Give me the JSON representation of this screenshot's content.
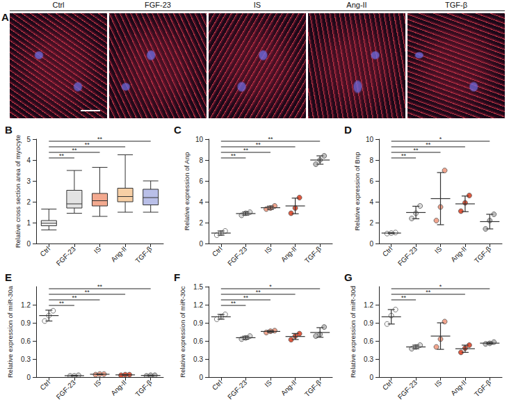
{
  "image_panel": {
    "label": "A",
    "titles": [
      "Ctrl",
      "FGF-23",
      "IS",
      "Ang-II",
      "TGF-β"
    ]
  },
  "chart_data": [
    {
      "type": "boxplot",
      "title": "B",
      "ylabel": "Relative cross section area of myocyte",
      "categories": [
        "Ctrl",
        "FGF-23",
        "IS",
        "Ang-II",
        "TGF-β"
      ],
      "values": [
        [
          0.65,
          0.85,
          0.97,
          1.1,
          1.65
        ],
        [
          1.45,
          1.7,
          1.9,
          2.55,
          3.5
        ],
        [
          1.3,
          1.8,
          2.05,
          2.4,
          3.65
        ],
        [
          1.5,
          2.0,
          2.25,
          2.65,
          4.25
        ],
        [
          1.5,
          1.85,
          2.2,
          2.6,
          3.0
        ]
      ],
      "colors": [
        "#efefef",
        "#e3e3e3",
        "#f3a98f",
        "#f7cfa5",
        "#b9bfe8"
      ],
      "ylim": [
        0,
        5
      ],
      "yticks": [
        0,
        1,
        2,
        3,
        4,
        5
      ],
      "grid": false,
      "annotations": [
        {
          "from": "Ctrl",
          "to": "FGF-23",
          "text": "**"
        },
        {
          "from": "Ctrl",
          "to": "IS",
          "text": "**"
        },
        {
          "from": "Ctrl",
          "to": "Ang-II",
          "text": "**"
        },
        {
          "from": "Ctrl",
          "to": "TGF-β",
          "text": "**"
        }
      ]
    },
    {
      "type": "dotplot",
      "title": "C",
      "ylabel": "Relative expression of Anp",
      "categories": [
        "Ctrl",
        "FGF-23",
        "IS",
        "Ang-II",
        "TGF-β"
      ],
      "values": [
        [
          0.8,
          1.0,
          1.2
        ],
        [
          2.7,
          2.9,
          3.0
        ],
        [
          3.3,
          3.4,
          3.6
        ],
        [
          2.9,
          3.4,
          4.4
        ],
        [
          7.6,
          8.0,
          8.4
        ]
      ],
      "means": [
        1.0,
        2.87,
        3.43,
        3.6,
        8.0
      ],
      "sd": [
        0.2,
        0.15,
        0.15,
        0.75,
        0.4
      ],
      "colors": [
        "#ffffff",
        "#d9d9d9",
        "#f2a58e",
        "#e0583e",
        "#bdbdbd"
      ],
      "ylim": [
        0,
        10
      ],
      "yticks": [
        0,
        2,
        4,
        6,
        8,
        10
      ],
      "grid": false,
      "annotations": [
        {
          "from": "Ctrl",
          "to": "FGF-23",
          "text": "**"
        },
        {
          "from": "Ctrl",
          "to": "IS",
          "text": "**"
        },
        {
          "from": "Ctrl",
          "to": "Ang-II",
          "text": "**"
        },
        {
          "from": "Ctrl",
          "to": "TGF-β",
          "text": "**"
        }
      ]
    },
    {
      "type": "dotplot",
      "title": "D",
      "ylabel": "Relative expression of Bnp",
      "categories": [
        "Ctrl",
        "FGF-23",
        "IS",
        "Ang-II",
        "TGF-β"
      ],
      "values": [
        [
          0.95,
          1.0,
          1.05
        ],
        [
          2.4,
          2.9,
          3.6
        ],
        [
          2.2,
          3.5,
          7.0
        ],
        [
          3.1,
          3.9,
          4.6
        ],
        [
          1.4,
          2.2,
          2.8
        ]
      ],
      "means": [
        1.0,
        2.97,
        4.3,
        3.8,
        2.1
      ],
      "sd": [
        0.05,
        0.6,
        2.5,
        0.75,
        0.7
      ],
      "colors": [
        "#ffffff",
        "#d9d9d9",
        "#f2a58e",
        "#e0583e",
        "#bdbdbd"
      ],
      "ylim": [
        0,
        10
      ],
      "yticks": [
        0,
        2,
        4,
        6,
        8,
        10
      ],
      "grid": false,
      "annotations": [
        {
          "from": "Ctrl",
          "to": "FGF-23",
          "text": "**"
        },
        {
          "from": "Ctrl",
          "to": "IS",
          "text": "**"
        },
        {
          "from": "Ctrl",
          "to": "Ang-II",
          "text": "**"
        },
        {
          "from": "Ctrl",
          "to": "TGF-β",
          "text": "*"
        }
      ]
    },
    {
      "type": "dotplot",
      "title": "E",
      "ylabel": "Relative expression of miR-30a",
      "categories": [
        "Ctrl",
        "FGF-23",
        "IS",
        "Ang-II",
        "TGF-β"
      ],
      "values": [
        [
          0.93,
          1.02,
          1.1
        ],
        [
          0.02,
          0.02,
          0.03
        ],
        [
          0.04,
          0.05,
          0.05
        ],
        [
          0.03,
          0.04,
          0.04
        ],
        [
          0.02,
          0.03,
          0.03
        ]
      ],
      "means": [
        1.02,
        0.023,
        0.047,
        0.037,
        0.027
      ],
      "sd": [
        0.09,
        0.005,
        0.005,
        0.005,
        0.005
      ],
      "colors": [
        "#ffffff",
        "#d9d9d9",
        "#f2a58e",
        "#e0583e",
        "#bdbdbd"
      ],
      "ylim": [
        0,
        1.5
      ],
      "yticks": [
        0,
        0.3,
        0.6,
        0.9,
        1.2
      ],
      "grid": false,
      "annotations": [
        {
          "from": "Ctrl",
          "to": "FGF-23",
          "text": "**"
        },
        {
          "from": "Ctrl",
          "to": "IS",
          "text": "**"
        },
        {
          "from": "Ctrl",
          "to": "Ang-II",
          "text": "**"
        },
        {
          "from": "Ctrl",
          "to": "TGF-β",
          "text": "**"
        }
      ]
    },
    {
      "type": "dotplot",
      "title": "F",
      "ylabel": "Relative expression of miR-30c",
      "categories": [
        "Ctrl",
        "FGF-23",
        "IS",
        "Ang-II",
        "TGF-β"
      ],
      "values": [
        [
          0.96,
          1.0,
          1.04
        ],
        [
          0.63,
          0.65,
          0.68
        ],
        [
          0.74,
          0.76,
          0.77
        ],
        [
          0.62,
          0.68,
          0.72
        ],
        [
          0.68,
          0.71,
          0.83
        ]
      ],
      "means": [
        1.0,
        0.653,
        0.757,
        0.673,
        0.74
      ],
      "sd": [
        0.04,
        0.025,
        0.015,
        0.05,
        0.08
      ],
      "colors": [
        "#ffffff",
        "#d9d9d9",
        "#f2a58e",
        "#e0583e",
        "#bdbdbd"
      ],
      "ylim": [
        0,
        1.5
      ],
      "yticks": [
        0,
        0.3,
        0.6,
        0.9,
        1.2,
        1.5
      ],
      "grid": false,
      "annotations": [
        {
          "from": "Ctrl",
          "to": "FGF-23",
          "text": "**"
        },
        {
          "from": "Ctrl",
          "to": "IS",
          "text": "**"
        },
        {
          "from": "Ctrl",
          "to": "Ang-II",
          "text": "**"
        },
        {
          "from": "Ctrl",
          "to": "TGF-β",
          "text": "*"
        }
      ]
    },
    {
      "type": "dotplot",
      "title": "G",
      "ylabel": "Relative expression of miR-30d",
      "categories": [
        "Ctrl",
        "FGF-23",
        "IS",
        "Ang-II",
        "TGF-β"
      ],
      "values": [
        [
          0.88,
          1.02,
          1.12
        ],
        [
          0.47,
          0.5,
          0.53
        ],
        [
          0.5,
          0.63,
          0.92
        ],
        [
          0.41,
          0.48,
          0.53
        ],
        [
          0.55,
          0.56,
          0.58
        ]
      ],
      "means": [
        1.0,
        0.5,
        0.68,
        0.47,
        0.563
      ],
      "sd": [
        0.12,
        0.03,
        0.22,
        0.06,
        0.015
      ],
      "colors": [
        "#ffffff",
        "#d9d9d9",
        "#f2a58e",
        "#e0583e",
        "#bdbdbd"
      ],
      "ylim": [
        0,
        1.5
      ],
      "yticks": [
        0,
        0.3,
        0.6,
        0.9,
        1.2
      ],
      "grid": false,
      "annotations": [
        {
          "from": "Ctrl",
          "to": "FGF-23",
          "text": "**"
        },
        {
          "from": "Ctrl",
          "to": "Ang-II",
          "text": "**"
        },
        {
          "from": "Ctrl",
          "to": "TGF-β",
          "text": "*"
        }
      ]
    }
  ]
}
